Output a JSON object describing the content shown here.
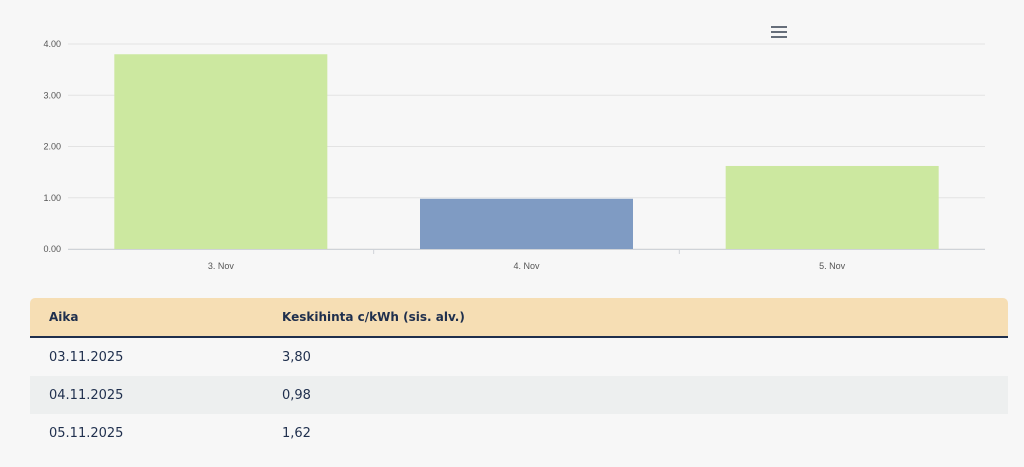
{
  "chart_data": {
    "type": "bar",
    "categories": [
      "3. Nov",
      "4. Nov",
      "5. Nov"
    ],
    "values": [
      3.8,
      0.98,
      1.62
    ],
    "bar_colors": [
      "#cce8a0",
      "#7f9bc3",
      "#cce8a0"
    ],
    "ylim": [
      0,
      4
    ],
    "yticks": [
      "0.00",
      "1.00",
      "2.00",
      "3.00",
      "4.00"
    ],
    "grid": true,
    "title": "",
    "xlabel": "",
    "ylabel": ""
  },
  "menu_icon": "hamburger-menu-icon",
  "table": {
    "headers": [
      "Aika",
      "Keskihinta c/kWh (sis. alv.)"
    ],
    "rows": [
      [
        "03.11.2025",
        "3,80"
      ],
      [
        "04.11.2025",
        "0,98"
      ],
      [
        "05.11.2025",
        "1,62"
      ]
    ]
  },
  "colors": {
    "header_bg": "#f6deb4",
    "text": "#1f2f4d",
    "alt_row": "#edefef"
  }
}
